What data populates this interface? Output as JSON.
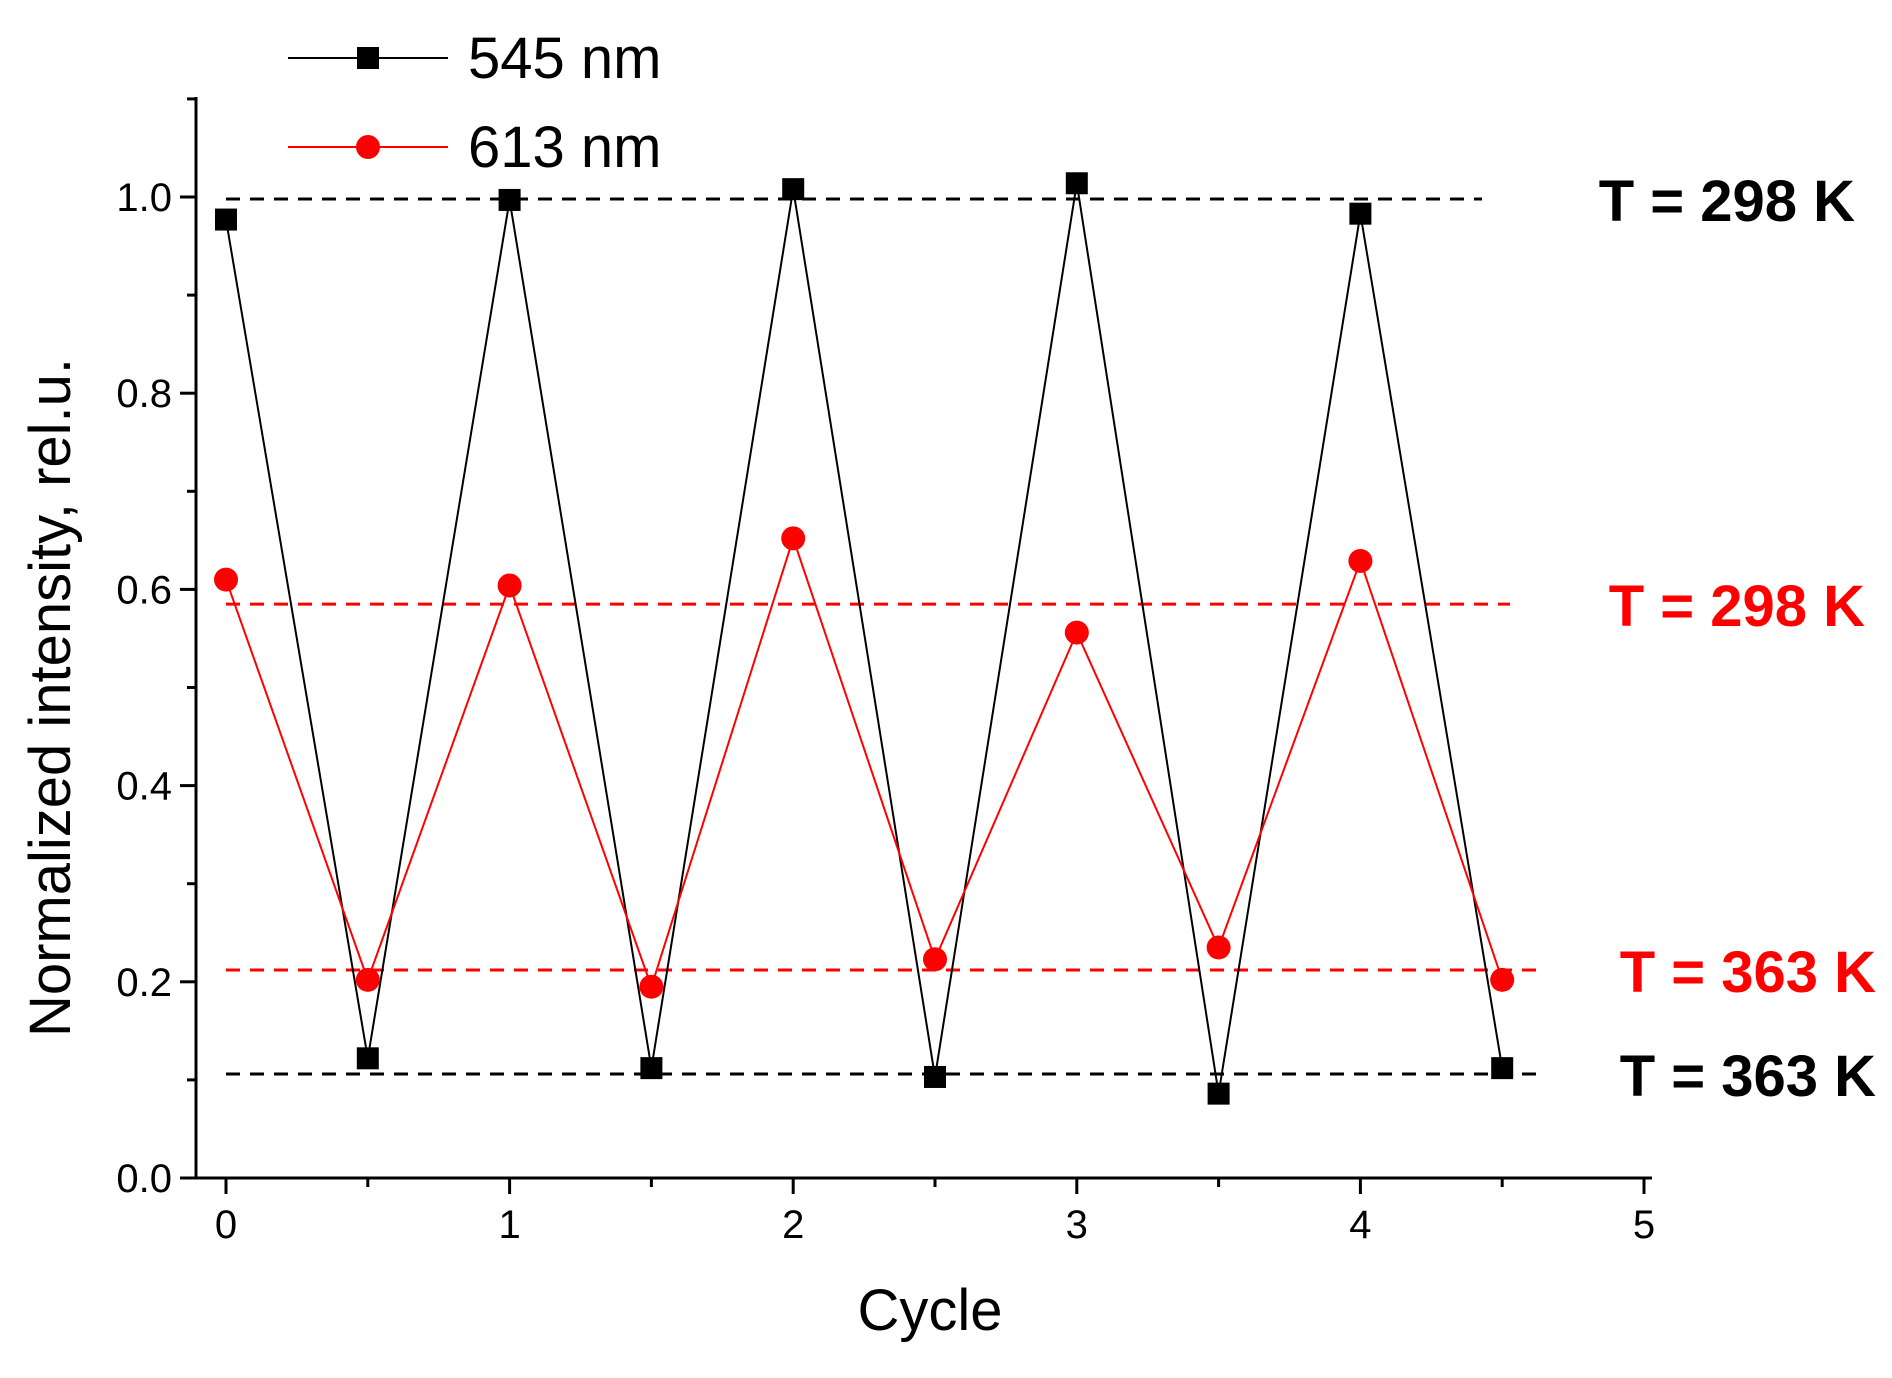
{
  "chart_data": {
    "type": "line",
    "title": "",
    "xlabel": "Cycle",
    "ylabel": "Normalized intensity, rel.u.",
    "xlim": [
      -0.1,
      5
    ],
    "ylim": [
      0,
      1.1
    ],
    "xticks": [
      0,
      1,
      2,
      3,
      4,
      5
    ],
    "xtick_labels": [
      "0",
      "1",
      "2",
      "3",
      "4",
      "5"
    ],
    "yticks": [
      0.0,
      0.2,
      0.4,
      0.6,
      0.8,
      1.0
    ],
    "ytick_labels": [
      "0.0",
      "0.2",
      "0.4",
      "0.6",
      "0.8",
      "1.0"
    ],
    "grid": false,
    "legend_position": "top-left",
    "x": [
      0,
      0.5,
      1,
      1.5,
      2,
      2.5,
      3,
      3.5,
      4,
      4.5
    ],
    "series": [
      {
        "name": "545 nm",
        "color": "#000000",
        "marker": "square",
        "values": [
          0.977,
          0.122,
          0.997,
          0.112,
          1.008,
          0.103,
          1.014,
          0.086,
          0.983,
          0.112
        ]
      },
      {
        "name": "613 nm",
        "color": "#ff0000",
        "marker": "circle",
        "values": [
          0.61,
          0.202,
          0.604,
          0.195,
          0.652,
          0.223,
          0.556,
          0.235,
          0.629,
          0.202
        ]
      }
    ],
    "reference_lines": [
      {
        "y": 0.998,
        "label": "T = 298 K",
        "color": "#000000"
      },
      {
        "y": 0.585,
        "label": "T = 298 K",
        "color": "#ff0000"
      },
      {
        "y": 0.212,
        "label": "T = 363 K",
        "color": "#ff0000"
      },
      {
        "y": 0.106,
        "label": "T = 363 K",
        "color": "#000000"
      }
    ]
  }
}
